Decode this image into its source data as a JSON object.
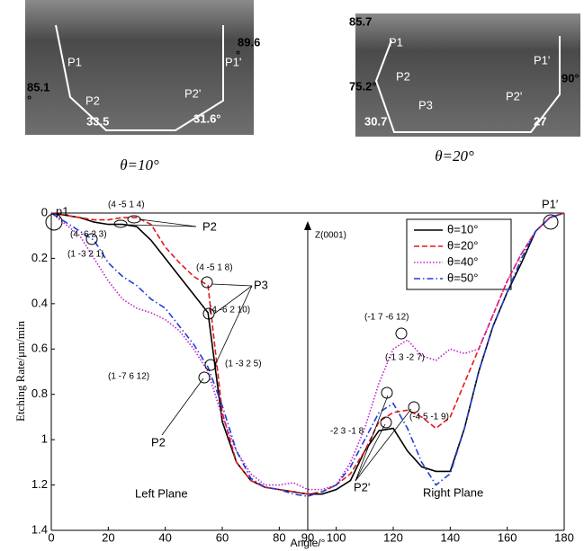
{
  "images": [
    {
      "caption": "θ=10°",
      "labels": [
        "P1",
        "P1'",
        "89.6",
        "°",
        "85.1",
        "°",
        "P2",
        "P2'",
        "33.5",
        "31.6°"
      ]
    },
    {
      "caption": "θ=20°",
      "labels": [
        "85.7",
        "P1",
        "P2",
        "75.2°",
        "P3",
        "P2'",
        "P1'",
        "90°",
        "30.7",
        "27"
      ]
    }
  ],
  "chart_data": {
    "type": "line",
    "x_label": "Angle/°",
    "y_label": "Etching Rate/μm/min",
    "x": [
      0,
      5,
      10,
      15,
      20,
      25,
      30,
      35,
      40,
      45,
      50,
      55,
      60,
      65,
      70,
      75,
      80,
      85,
      90,
      95,
      100,
      105,
      110,
      115,
      120,
      125,
      130,
      135,
      140,
      145,
      150,
      155,
      160,
      165,
      170,
      175,
      180
    ],
    "series": [
      {
        "name": "θ=10°",
        "color": "#000000",
        "style": "solid",
        "values": [
          0,
          0.01,
          0.02,
          0.04,
          0.05,
          0.05,
          0.06,
          0.12,
          0.2,
          0.28,
          0.36,
          0.44,
          0.92,
          1.1,
          1.18,
          1.21,
          1.22,
          1.23,
          1.24,
          1.24,
          1.22,
          1.18,
          1.05,
          0.96,
          0.95,
          1.05,
          1.12,
          1.14,
          1.14,
          0.95,
          0.7,
          0.5,
          0.35,
          0.22,
          0.08,
          0.02,
          0
        ]
      },
      {
        "name": "θ=20°",
        "color": "#e8161b",
        "style": "dashed",
        "values": [
          0,
          0.01,
          0.02,
          0.03,
          0.03,
          0.02,
          0.02,
          0.05,
          0.15,
          0.22,
          0.28,
          0.32,
          0.88,
          1.1,
          1.18,
          1.21,
          1.22,
          1.23,
          1.24,
          1.23,
          1.2,
          1.15,
          1.05,
          0.92,
          0.88,
          0.87,
          0.9,
          0.95,
          0.9,
          0.75,
          0.6,
          0.45,
          0.3,
          0.18,
          0.08,
          0.02,
          0
        ]
      },
      {
        "name": "θ=40°",
        "color": "#c21ccf",
        "style": "dotted",
        "values": [
          0,
          0.05,
          0.1,
          0.2,
          0.3,
          0.38,
          0.42,
          0.44,
          0.47,
          0.52,
          0.6,
          0.7,
          0.9,
          1.05,
          1.15,
          1.2,
          1.2,
          1.19,
          1.22,
          1.22,
          1.2,
          1.1,
          0.95,
          0.75,
          0.6,
          0.56,
          0.63,
          0.65,
          0.6,
          0.62,
          0.6,
          0.45,
          0.3,
          0.18,
          0.08,
          0.02,
          0
        ]
      },
      {
        "name": "θ=50°",
        "color": "#1f3fd6",
        "style": "dashdot",
        "values": [
          0,
          0.04,
          0.08,
          0.12,
          0.22,
          0.28,
          0.32,
          0.38,
          0.42,
          0.5,
          0.58,
          0.68,
          0.85,
          1.05,
          1.17,
          1.21,
          1.22,
          1.24,
          1.25,
          1.23,
          1.2,
          1.12,
          1.0,
          0.88,
          0.84,
          0.95,
          1.1,
          1.2,
          1.15,
          0.95,
          0.7,
          0.5,
          0.35,
          0.2,
          0.08,
          0.02,
          0
        ]
      }
    ],
    "xlim": [
      0,
      180
    ],
    "ylim": [
      0,
      1.4
    ],
    "y_inverted": true,
    "xticks": [
      0,
      20,
      40,
      60,
      80,
      90,
      100,
      120,
      140,
      160,
      180
    ],
    "yticks": [
      0,
      0.2,
      0.4,
      0.6,
      0.8,
      1,
      1.2,
      1.4
    ],
    "legend": "upper right",
    "annotations": [
      "p1",
      "P1′",
      "(4 -5 1 4)",
      "(4 -6 2 3)",
      "(1 -3 2 1)",
      "P2",
      "(4 -5 1 8)",
      "(4 -6 2 10)",
      "P3",
      "(1 -3 2 5)",
      "(1 -7 6 12)",
      "P2",
      "Z(0001)",
      "(-1 7 -6 12)",
      "(-1 3 -2 7)",
      "(-4 5 -1 9)",
      "-2 3 -1 8",
      "P2'",
      "Left Plane",
      "Right Plane"
    ]
  }
}
